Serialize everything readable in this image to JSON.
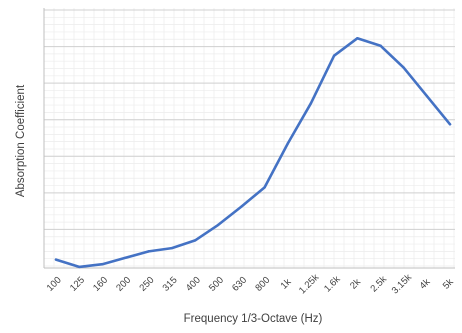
{
  "chart_data": {
    "type": "line",
    "title": "",
    "xlabel": "Frequency 1/3-Octave (Hz)",
    "ylabel": "Absorption Coefficient",
    "categories": [
      "100",
      "125",
      "160",
      "200",
      "250",
      "315",
      "400",
      "500",
      "630",
      "800",
      "1k",
      "1.25k",
      "1.6k",
      "2k",
      "2.5k",
      "3.15k",
      "4k",
      "5k"
    ],
    "tick_labels": [
      "100",
      "125",
      "160",
      "200",
      "250",
      "315",
      "400",
      "500",
      "630",
      "800",
      "1k",
      "1.25k",
      "1.6k",
      "2k",
      "2.5k",
      "3.15k",
      "4k",
      "5k"
    ],
    "series": [
      {
        "name": "",
        "values": [
          0.035,
          -0.005,
          0.01,
          0.045,
          0.08,
          0.098,
          0.14,
          0.225,
          0.325,
          0.43,
          0.67,
          0.89,
          1.15,
          1.245,
          1.205,
          1.085,
          0.93,
          0.775
        ]
      }
    ],
    "ylim": [
      0.0,
      1.4
    ],
    "grid": true,
    "legend": "none",
    "colors": {
      "line": "#4472C4",
      "major_grid": "#d0d0d0",
      "minor_grid": "#ececec",
      "axis": "#bfbfbf",
      "text": "#404040"
    }
  }
}
